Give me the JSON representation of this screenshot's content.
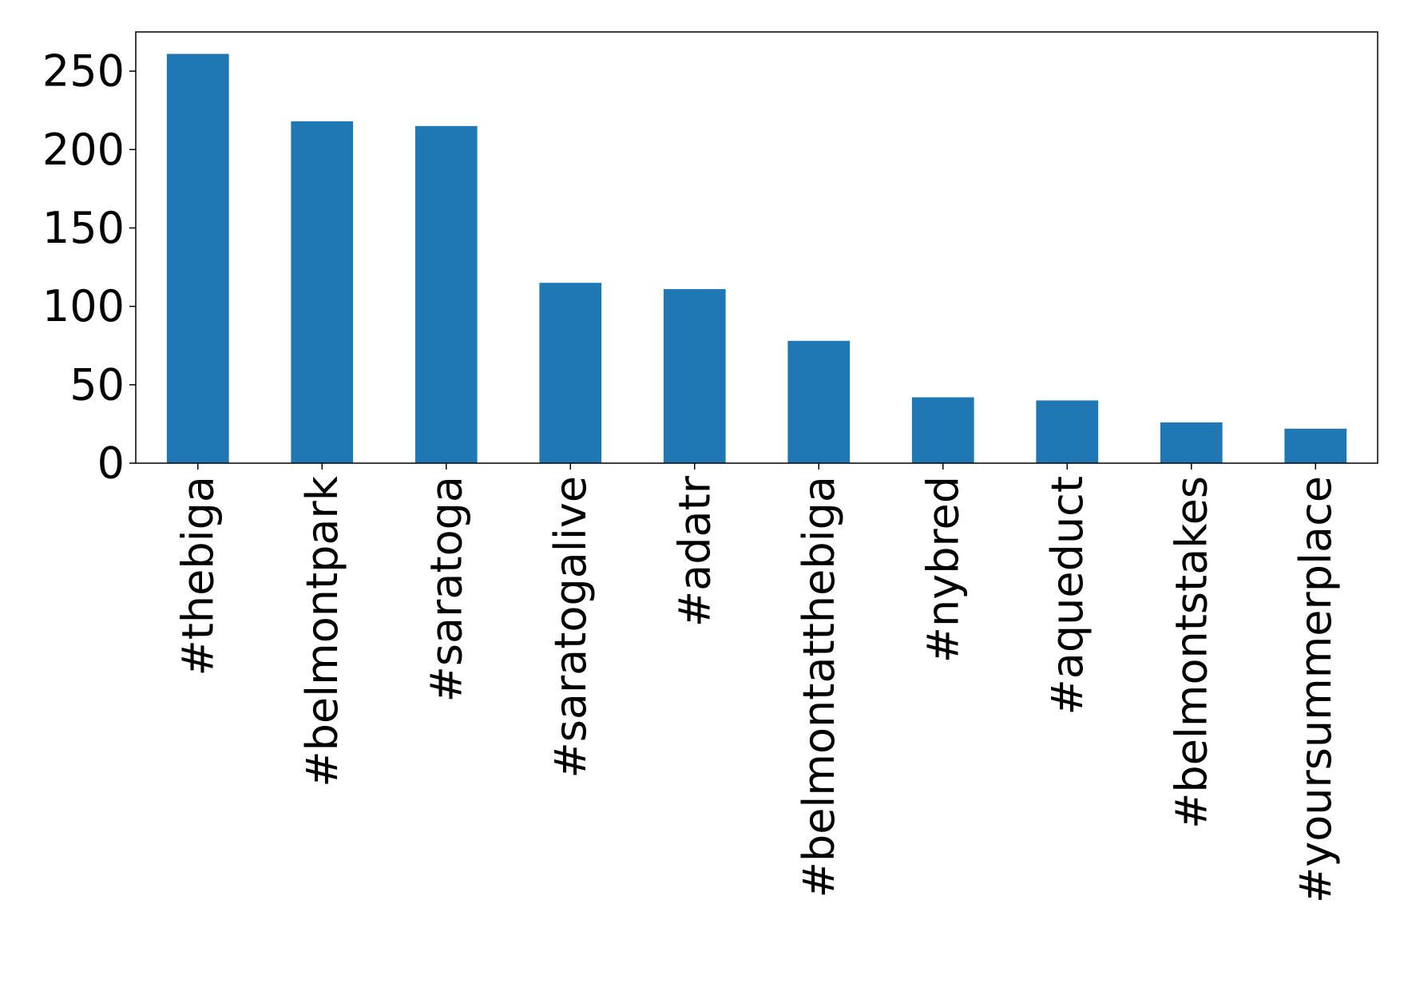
{
  "chart_data": {
    "type": "bar",
    "title": "",
    "xlabel": "",
    "ylabel": "",
    "categories": [
      "#thebiga",
      "#belmontpark",
      "#saratoga",
      "#saratogalive",
      "#adatr",
      "#belmontatthebiga",
      "#nybred",
      "#aqueduct",
      "#belmontstakes",
      "#yoursummerplace"
    ],
    "values": [
      261,
      218,
      215,
      115,
      111,
      78,
      42,
      40,
      26,
      22
    ],
    "ylim": [
      0,
      275
    ],
    "yticks": [
      0,
      50,
      100,
      150,
      200,
      250
    ],
    "ytick_labels": [
      "0",
      "50",
      "100",
      "150",
      "200",
      "250"
    ],
    "bar_color": "#1f77b4",
    "grid": false,
    "legend": "none"
  }
}
